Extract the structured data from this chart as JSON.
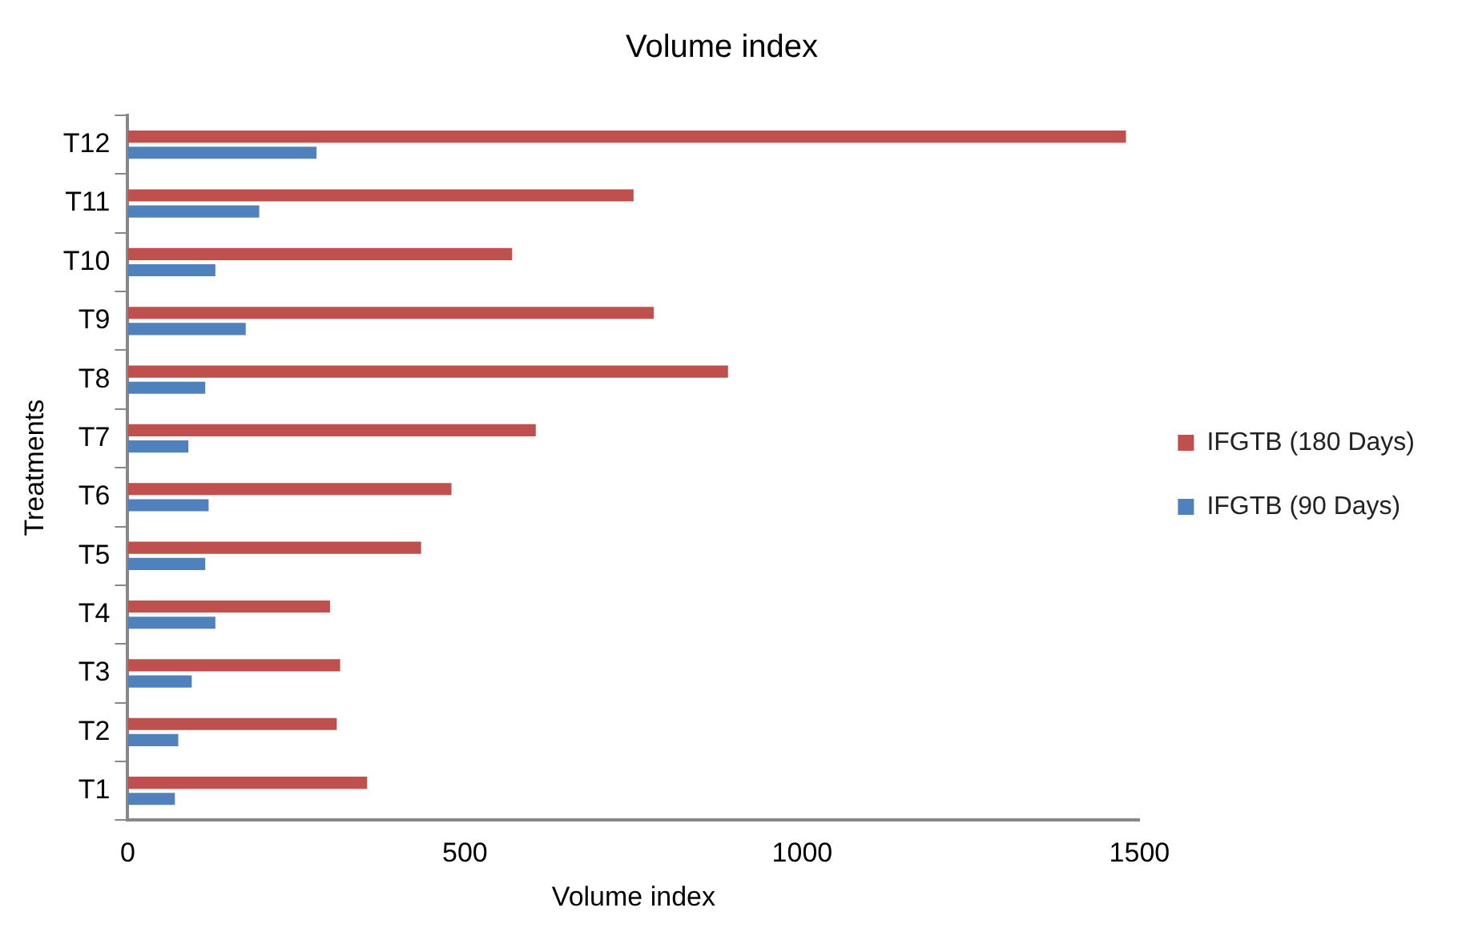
{
  "chart_data": {
    "type": "bar",
    "orientation": "horizontal",
    "title": "Volume index",
    "xlabel": "Volume index",
    "ylabel": "Treatments",
    "categories": [
      "T12",
      "T11",
      "T10",
      "T9",
      "T8",
      "T7",
      "T6",
      "T5",
      "T4",
      "T3",
      "T2",
      "T1"
    ],
    "series": [
      {
        "name": "IFGTB (180 Days)",
        "color": "#c0504d",
        "values": [
          1480,
          750,
          570,
          780,
          890,
          605,
          480,
          435,
          300,
          315,
          310,
          355
        ]
      },
      {
        "name": "IFGTB (90 Days)",
        "color": "#4f81bd",
        "values": [
          280,
          195,
          130,
          175,
          115,
          90,
          120,
          115,
          130,
          95,
          75,
          70
        ]
      }
    ],
    "xlim": [
      0,
      1500
    ],
    "xticks": [
      0,
      500,
      1000,
      1500
    ],
    "grid": false,
    "legend": "right"
  }
}
